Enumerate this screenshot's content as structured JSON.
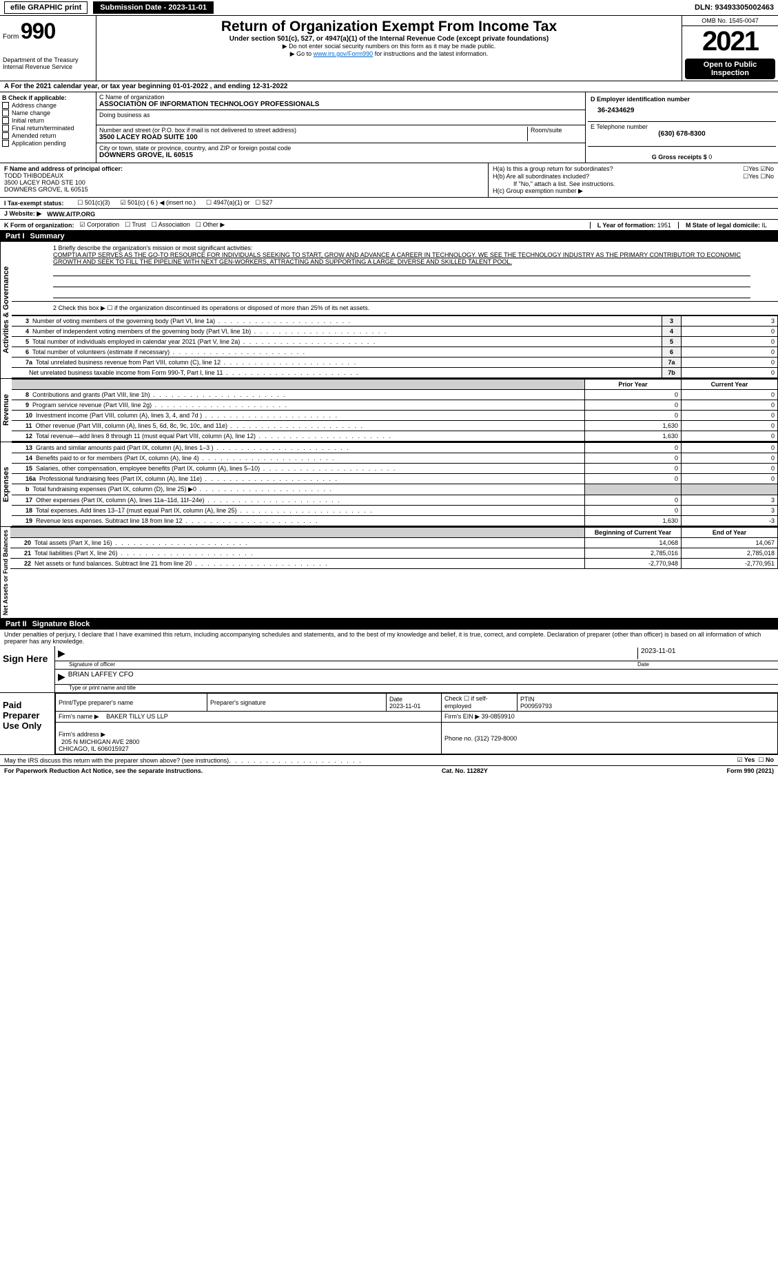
{
  "topbar": {
    "efile": "efile GRAPHIC print",
    "submission": "Submission Date - 2023-11-01",
    "dln": "DLN: 93493305002463"
  },
  "header": {
    "form_prefix": "Form",
    "form_num": "990",
    "dept": "Department of the Treasury\nInternal Revenue Service",
    "title": "Return of Organization Exempt From Income Tax",
    "subtitle": "Under section 501(c), 527, or 4947(a)(1) of the Internal Revenue Code (except private foundations)",
    "note1": "▶ Do not enter social security numbers on this form as it may be made public.",
    "note2_a": "▶ Go to ",
    "note2_link": "www.irs.gov/Form990",
    "note2_b": " for instructions and the latest information.",
    "omb": "OMB No. 1545-0047",
    "year": "2021",
    "open": "Open to Public Inspection"
  },
  "row_a": "A For the 2021 calendar year, or tax year beginning 01-01-2022     , and ending 12-31-2022",
  "col_b": {
    "label": "B Check if applicable:",
    "items": [
      "Address change",
      "Name change",
      "Initial return",
      "Final return/terminated",
      "Amended return",
      "Application pending"
    ]
  },
  "col_c": {
    "name_label": "C Name of organization",
    "name": "ASSOCIATION OF INFORMATION TECHNOLOGY PROFESSIONALS",
    "dba_label": "Doing business as",
    "addr_label": "Number and street (or P.O. box if mail is not delivered to street address)",
    "room_label": "Room/suite",
    "addr": "3500 LACEY ROAD SUITE 100",
    "city_label": "City or town, state or province, country, and ZIP or foreign postal code",
    "city": "DOWNERS GROVE, IL  60515"
  },
  "col_d": {
    "ein_label": "D Employer identification number",
    "ein": "36-2434629",
    "tel_label": "E Telephone number",
    "tel": "(630) 678-8300",
    "gross_label": "G Gross receipts $",
    "gross": "0"
  },
  "row_f": {
    "label": "F Name and address of principal officer:",
    "name": "TODD THIBODEAUX",
    "addr1": "3500 LACEY ROAD STE 100",
    "addr2": "DOWNERS GROVE, IL  60515"
  },
  "row_h": {
    "ha": "H(a)  Is this a group return for subordinates?",
    "hb": "H(b)  Are all subordinates included?",
    "hb_note": "If \"No,\" attach a list. See instructions.",
    "hc": "H(c)  Group exemption number ▶"
  },
  "row_i": {
    "label": "I   Tax-exempt status:",
    "c3": "501(c)(3)",
    "c": "501(c) ( 6 ) ◀ (insert no.)",
    "a1": "4947(a)(1) or",
    "527": "527"
  },
  "row_j": {
    "label": "J   Website: ▶",
    "val": "WWW.AITP.ORG"
  },
  "row_k": {
    "label": "K Form of organization:",
    "opts": [
      "Corporation",
      "Trust",
      "Association",
      "Other ▶"
    ]
  },
  "row_l": {
    "label": "L Year of formation:",
    "val": "1951"
  },
  "row_m": {
    "label": "M State of legal domicile:",
    "val": "IL"
  },
  "part1": {
    "title": "Part I",
    "name": "Summary",
    "line1_label": "1  Briefly describe the organization's mission or most significant activities:",
    "mission": "COMPTIA AITP SERVES AS THE GO-TO RESOURCE FOR INDIVIDUALS SEEKING TO START, GROW AND ADVANCE A CAREER IN TECHNOLOGY. WE SEE THE TECHNOLOGY INDUSTRY AS THE PRIMARY CONTRIBUTOR TO ECONOMIC GROWTH AND SEEK TO FILL THE PIPELINE WITH NEXT GEN-WORKERS, ATTRACTING AND SUPPORTING A LARGE, DIVERSE AND SKILLED TALENT POOL.",
    "line2": "2   Check this box ▶ ☐ if the organization discontinued its operations or disposed of more than 25% of its net assets.",
    "side_gov": "Activities & Governance",
    "side_rev": "Revenue",
    "side_exp": "Expenses",
    "side_net": "Net Assets or Fund Balances",
    "rows_gov": [
      {
        "n": "3",
        "label": "Number of voting members of the governing body (Part VI, line 1a)",
        "box": "3",
        "val": "3"
      },
      {
        "n": "4",
        "label": "Number of independent voting members of the governing body (Part VI, line 1b)",
        "box": "4",
        "val": "0"
      },
      {
        "n": "5",
        "label": "Total number of individuals employed in calendar year 2021 (Part V, line 2a)",
        "box": "5",
        "val": "0"
      },
      {
        "n": "6",
        "label": "Total number of volunteers (estimate if necessary)",
        "box": "6",
        "val": "0"
      },
      {
        "n": "7a",
        "label": "Total unrelated business revenue from Part VIII, column (C), line 12",
        "box": "7a",
        "val": "0"
      },
      {
        "n": "",
        "label": "Net unrelated business taxable income from Form 990-T, Part I, line 11",
        "box": "7b",
        "val": "0"
      }
    ],
    "hdr_prior": "Prior Year",
    "hdr_curr": "Current Year",
    "rows_rev": [
      {
        "n": "8",
        "label": "Contributions and grants (Part VIII, line 1h)",
        "prior": "0",
        "curr": "0"
      },
      {
        "n": "9",
        "label": "Program service revenue (Part VIII, line 2g)",
        "prior": "0",
        "curr": "0"
      },
      {
        "n": "10",
        "label": "Investment income (Part VIII, column (A), lines 3, 4, and 7d )",
        "prior": "0",
        "curr": "0"
      },
      {
        "n": "11",
        "label": "Other revenue (Part VIII, column (A), lines 5, 6d, 8c, 9c, 10c, and 11e)",
        "prior": "1,630",
        "curr": "0"
      },
      {
        "n": "12",
        "label": "Total revenue—add lines 8 through 11 (must equal Part VIII, column (A), line 12)",
        "prior": "1,630",
        "curr": "0"
      }
    ],
    "rows_exp": [
      {
        "n": "13",
        "label": "Grants and similar amounts paid (Part IX, column (A), lines 1–3 )",
        "prior": "0",
        "curr": "0"
      },
      {
        "n": "14",
        "label": "Benefits paid to or for members (Part IX, column (A), line 4)",
        "prior": "0",
        "curr": "0"
      },
      {
        "n": "15",
        "label": "Salaries, other compensation, employee benefits (Part IX, column (A), lines 5–10)",
        "prior": "0",
        "curr": "0"
      },
      {
        "n": "16a",
        "label": "Professional fundraising fees (Part IX, column (A), line 11e)",
        "prior": "0",
        "curr": "0"
      },
      {
        "n": "b",
        "label": "Total fundraising expenses (Part IX, column (D), line 25) ▶0",
        "prior": "",
        "curr": "",
        "shaded": true
      },
      {
        "n": "17",
        "label": "Other expenses (Part IX, column (A), lines 11a–11d, 11f–24e)",
        "prior": "0",
        "curr": "3"
      },
      {
        "n": "18",
        "label": "Total expenses. Add lines 13–17 (must equal Part IX, column (A), line 25)",
        "prior": "0",
        "curr": "3"
      },
      {
        "n": "19",
        "label": "Revenue less expenses. Subtract line 18 from line 12",
        "prior": "1,630",
        "curr": "-3"
      }
    ],
    "hdr_beg": "Beginning of Current Year",
    "hdr_end": "End of Year",
    "rows_net": [
      {
        "n": "20",
        "label": "Total assets (Part X, line 16)",
        "prior": "14,068",
        "curr": "14,067"
      },
      {
        "n": "21",
        "label": "Total liabilities (Part X, line 26)",
        "prior": "2,785,016",
        "curr": "2,785,018"
      },
      {
        "n": "22",
        "label": "Net assets or fund balances. Subtract line 21 from line 20",
        "prior": "-2,770,948",
        "curr": "-2,770,951"
      }
    ]
  },
  "part2": {
    "title": "Part II",
    "name": "Signature Block",
    "decl": "Under penalties of perjury, I declare that I have examined this return, including accompanying schedules and statements, and to the best of my knowledge and belief, it is true, correct, and complete. Declaration of preparer (other than officer) is based on all information of which preparer has any knowledge.",
    "sign_here": "Sign Here",
    "sig_officer": "Signature of officer",
    "sig_date": "2023-11-01",
    "date_label": "Date",
    "officer_name": "BRIAN LAFFEY CFO",
    "type_name": "Type or print name and title",
    "paid": "Paid Preparer Use Only",
    "prep_name_label": "Print/Type preparer's name",
    "prep_sig_label": "Preparer's signature",
    "prep_date_label": "Date",
    "prep_date": "2023-11-01",
    "check_self": "Check ☐ if self-employed",
    "ptin_label": "PTIN",
    "ptin": "P00959793",
    "firm_name_label": "Firm's name    ▶",
    "firm_name": "BAKER TILLY US LLP",
    "firm_ein_label": "Firm's EIN ▶",
    "firm_ein": "39-0859910",
    "firm_addr_label": "Firm's address ▶",
    "firm_addr": "205 N MICHIGAN AVE 2800\nCHICAGO, IL  606015927",
    "phone_label": "Phone no.",
    "phone": "(312) 729-8000",
    "discuss": "May the IRS discuss this return with the preparer shown above? (see instructions)",
    "yes": "Yes",
    "no": "No"
  },
  "footer": {
    "left": "For Paperwork Reduction Act Notice, see the separate instructions.",
    "mid": "Cat. No. 11282Y",
    "right": "Form 990 (2021)"
  },
  "colors": {
    "link": "#0066cc",
    "shade": "#d0d0d0"
  }
}
